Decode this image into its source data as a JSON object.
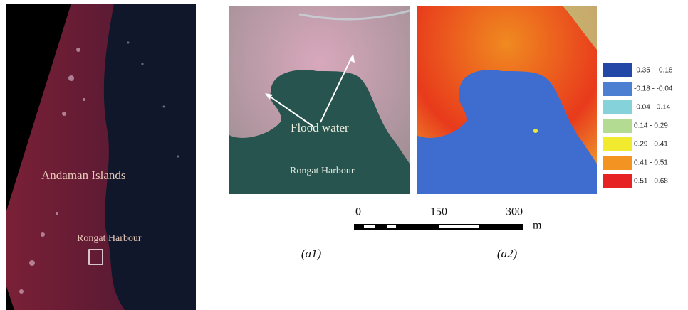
{
  "overview": {
    "region_label": "Andaman Islands",
    "site_label": "Rongat Harbour"
  },
  "panel_a1": {
    "annotation": "Flood water",
    "site_label": "Rongat Harbour",
    "caption": "(a1)"
  },
  "panel_a2": {
    "caption": "(a2)"
  },
  "scale_bar": {
    "ticks": [
      "0",
      "150",
      "300"
    ],
    "unit": "m"
  },
  "legend": [
    {
      "label": "-0.35 - -0.18",
      "color": "#2347a6"
    },
    {
      "label": "-0.18 - -0.04",
      "color": "#4c7fd2"
    },
    {
      "label": "-0.04 - 0.14",
      "color": "#86d2da"
    },
    {
      "label": "0.14 - 0.29",
      "color": "#b3dc92"
    },
    {
      "label": "0.29 - 0.41",
      "color": "#f2ea2e"
    },
    {
      "label": "0.41 - 0.51",
      "color": "#f39322"
    },
    {
      "label": "0.51 - 0.68",
      "color": "#e62222"
    }
  ]
}
